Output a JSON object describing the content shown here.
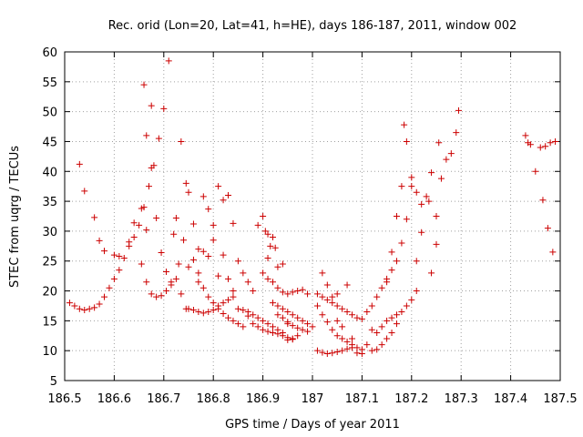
{
  "chart_data": {
    "type": "scatter",
    "title": "Rec. orid (Lon=20, Lat=41, h=HE), days 186-187, 2011, window 002",
    "xlabel": "GPS time / Days of year 2011",
    "ylabel": "STEC from uqrg / TECUs",
    "xlim": [
      186.5,
      187.5
    ],
    "ylim": [
      5,
      60
    ],
    "xticks": [
      "186.5",
      "186.6",
      "186.7",
      "186.8",
      "186.9",
      "187",
      "187.1",
      "187.2",
      "187.3",
      "187.4",
      "187.5"
    ],
    "yticks": [
      "5",
      "10",
      "15",
      "20",
      "25",
      "30",
      "35",
      "40",
      "45",
      "50",
      "55",
      "60"
    ],
    "grid": true,
    "marker": "plus",
    "color": "#cc0000",
    "points": [
      [
        186.51,
        18.0
      ],
      [
        186.52,
        17.5
      ],
      [
        186.53,
        17.0
      ],
      [
        186.54,
        16.8
      ],
      [
        186.55,
        17.0
      ],
      [
        186.56,
        17.2
      ],
      [
        186.57,
        17.8
      ],
      [
        186.58,
        19.0
      ],
      [
        186.59,
        20.5
      ],
      [
        186.6,
        22.0
      ],
      [
        186.61,
        23.5
      ],
      [
        186.62,
        25.5
      ],
      [
        186.63,
        27.5
      ],
      [
        186.64,
        29.0
      ],
      [
        186.65,
        31.0
      ],
      [
        186.66,
        34.0
      ],
      [
        186.67,
        37.5
      ],
      [
        186.68,
        41.0
      ],
      [
        186.69,
        45.5
      ],
      [
        186.7,
        50.5
      ],
      [
        186.71,
        58.5
      ],
      [
        186.53,
        41.2
      ],
      [
        186.54,
        36.7
      ],
      [
        186.56,
        32.3
      ],
      [
        186.57,
        28.4
      ],
      [
        186.58,
        26.7
      ],
      [
        186.6,
        26.0
      ],
      [
        186.61,
        25.8
      ],
      [
        186.63,
        28.2
      ],
      [
        186.64,
        31.4
      ],
      [
        186.655,
        24.5
      ],
      [
        186.665,
        21.5
      ],
      [
        186.675,
        19.5
      ],
      [
        186.685,
        19.0
      ],
      [
        186.695,
        19.2
      ],
      [
        186.705,
        20.0
      ],
      [
        186.715,
        21.0
      ],
      [
        186.725,
        22.0
      ],
      [
        186.735,
        19.5
      ],
      [
        186.745,
        17.0
      ],
      [
        186.655,
        33.8
      ],
      [
        186.665,
        30.2
      ],
      [
        186.675,
        40.6
      ],
      [
        186.685,
        32.2
      ],
      [
        186.695,
        26.4
      ],
      [
        186.705,
        23.2
      ],
      [
        186.715,
        21.5
      ],
      [
        186.725,
        32.2
      ],
      [
        186.735,
        45.0
      ],
      [
        186.745,
        38.0
      ],
      [
        186.66,
        54.5
      ],
      [
        186.665,
        46.0
      ],
      [
        186.675,
        51.0
      ],
      [
        186.72,
        29.5
      ],
      [
        186.73,
        24.5
      ],
      [
        186.74,
        28.5
      ],
      [
        186.75,
        36.5
      ],
      [
        186.76,
        31.2
      ],
      [
        186.77,
        27.0
      ],
      [
        186.78,
        35.8
      ],
      [
        186.79,
        33.7
      ],
      [
        186.8,
        31.0
      ],
      [
        186.81,
        37.5
      ],
      [
        186.82,
        35.2
      ],
      [
        186.83,
        36.0
      ],
      [
        186.84,
        31.3
      ],
      [
        186.85,
        25.0
      ],
      [
        186.86,
        23.0
      ],
      [
        186.87,
        21.5
      ],
      [
        186.88,
        20.0
      ],
      [
        186.75,
        24.0
      ],
      [
        186.76,
        25.2
      ],
      [
        186.77,
        23.0
      ],
      [
        186.78,
        26.6
      ],
      [
        186.79,
        25.8
      ],
      [
        186.8,
        28.5
      ],
      [
        186.81,
        22.5
      ],
      [
        186.82,
        26.0
      ],
      [
        186.83,
        22.0
      ],
      [
        186.84,
        20.0
      ],
      [
        186.75,
        17.0
      ],
      [
        186.76,
        16.8
      ],
      [
        186.77,
        16.5
      ],
      [
        186.78,
        16.3
      ],
      [
        186.79,
        16.5
      ],
      [
        186.8,
        16.8
      ],
      [
        186.81,
        17.5
      ],
      [
        186.82,
        18.0
      ],
      [
        186.83,
        18.5
      ],
      [
        186.84,
        19.0
      ],
      [
        186.77,
        21.5
      ],
      [
        186.78,
        20.5
      ],
      [
        186.79,
        19.0
      ],
      [
        186.8,
        18.0
      ],
      [
        186.81,
        17.0
      ],
      [
        186.82,
        16.2
      ],
      [
        186.83,
        15.5
      ],
      [
        186.84,
        15.0
      ],
      [
        186.85,
        14.5
      ],
      [
        186.86,
        14.0
      ],
      [
        186.85,
        17.0
      ],
      [
        186.86,
        16.8
      ],
      [
        186.87,
        16.5
      ],
      [
        186.88,
        16.0
      ],
      [
        186.89,
        15.5
      ],
      [
        186.9,
        15.0
      ],
      [
        186.91,
        14.5
      ],
      [
        186.92,
        14.0
      ],
      [
        186.93,
        13.5
      ],
      [
        186.94,
        13.0
      ],
      [
        186.87,
        15.8
      ],
      [
        186.88,
        14.5
      ],
      [
        186.89,
        14.0
      ],
      [
        186.9,
        13.5
      ],
      [
        186.91,
        13.2
      ],
      [
        186.92,
        13.0
      ],
      [
        186.93,
        12.8
      ],
      [
        186.94,
        12.5
      ],
      [
        186.95,
        12.2
      ],
      [
        186.96,
        12.0
      ],
      [
        186.89,
        31.0
      ],
      [
        186.9,
        32.5
      ],
      [
        186.905,
        30.0
      ],
      [
        186.91,
        29.5
      ],
      [
        186.915,
        27.5
      ],
      [
        186.92,
        29.0
      ],
      [
        186.925,
        27.2
      ],
      [
        186.93,
        24.0
      ],
      [
        186.94,
        24.5
      ],
      [
        186.91,
        25.5
      ],
      [
        186.9,
        23.0
      ],
      [
        186.91,
        22.0
      ],
      [
        186.92,
        21.5
      ],
      [
        186.93,
        20.5
      ],
      [
        186.94,
        19.8
      ],
      [
        186.95,
        19.5
      ],
      [
        186.96,
        19.8
      ],
      [
        186.97,
        20.0
      ],
      [
        186.98,
        20.2
      ],
      [
        186.99,
        19.5
      ],
      [
        186.92,
        18.0
      ],
      [
        186.93,
        17.5
      ],
      [
        186.94,
        17.0
      ],
      [
        186.95,
        16.5
      ],
      [
        186.96,
        16.0
      ],
      [
        186.97,
        15.5
      ],
      [
        186.98,
        15.0
      ],
      [
        186.99,
        14.5
      ],
      [
        187.0,
        14.0
      ],
      [
        186.95,
        14.5
      ],
      [
        186.93,
        16.0
      ],
      [
        186.94,
        15.5
      ],
      [
        186.95,
        14.8
      ],
      [
        186.96,
        14.2
      ],
      [
        186.97,
        13.8
      ],
      [
        186.98,
        13.5
      ],
      [
        186.99,
        13.2
      ],
      [
        186.95,
        11.8
      ],
      [
        186.96,
        11.9
      ],
      [
        186.97,
        12.5
      ],
      [
        187.01,
        19.5
      ],
      [
        187.02,
        19.0
      ],
      [
        187.03,
        18.5
      ],
      [
        187.04,
        18.0
      ],
      [
        187.05,
        17.5
      ],
      [
        187.06,
        17.0
      ],
      [
        187.07,
        16.5
      ],
      [
        187.08,
        16.0
      ],
      [
        187.09,
        15.5
      ],
      [
        187.1,
        15.3
      ],
      [
        187.01,
        17.5
      ],
      [
        187.02,
        16.0
      ],
      [
        187.03,
        14.8
      ],
      [
        187.04,
        13.5
      ],
      [
        187.05,
        12.5
      ],
      [
        187.06,
        12.0
      ],
      [
        187.07,
        11.5
      ],
      [
        187.08,
        11.0
      ],
      [
        187.09,
        10.5
      ],
      [
        187.1,
        10.2
      ],
      [
        187.01,
        10.0
      ],
      [
        187.02,
        9.7
      ],
      [
        187.03,
        9.5
      ],
      [
        187.04,
        9.6
      ],
      [
        187.05,
        9.8
      ],
      [
        187.06,
        10.0
      ],
      [
        187.07,
        10.3
      ],
      [
        187.08,
        10.5
      ],
      [
        187.09,
        9.6
      ],
      [
        187.1,
        9.5
      ],
      [
        187.02,
        23.0
      ],
      [
        187.03,
        21.0
      ],
      [
        187.04,
        19.0
      ],
      [
        187.05,
        19.5
      ],
      [
        187.07,
        21.0
      ],
      [
        187.08,
        12.0
      ],
      [
        187.06,
        14.0
      ],
      [
        187.05,
        15.0
      ],
      [
        187.11,
        11.0
      ],
      [
        187.12,
        10.0
      ],
      [
        187.11,
        16.5
      ],
      [
        187.12,
        17.5
      ],
      [
        187.13,
        19.0
      ],
      [
        187.14,
        20.5
      ],
      [
        187.15,
        22.0
      ],
      [
        187.16,
        23.5
      ],
      [
        187.17,
        25.0
      ],
      [
        187.18,
        28.0
      ],
      [
        187.19,
        32.0
      ],
      [
        187.2,
        37.5
      ],
      [
        187.12,
        13.5
      ],
      [
        187.13,
        13.0
      ],
      [
        187.14,
        14.0
      ],
      [
        187.15,
        15.0
      ],
      [
        187.16,
        15.5
      ],
      [
        187.17,
        16.0
      ],
      [
        187.18,
        16.5
      ],
      [
        187.19,
        17.5
      ],
      [
        187.2,
        18.5
      ],
      [
        187.21,
        20.0
      ],
      [
        187.13,
        10.2
      ],
      [
        187.14,
        11.0
      ],
      [
        187.15,
        12.0
      ],
      [
        187.16,
        13.0
      ],
      [
        187.17,
        14.5
      ],
      [
        187.15,
        21.5
      ],
      [
        187.16,
        26.5
      ],
      [
        187.17,
        32.5
      ],
      [
        187.18,
        37.5
      ],
      [
        187.185,
        47.8
      ],
      [
        187.19,
        45.0
      ],
      [
        187.2,
        39.0
      ],
      [
        187.21,
        36.5
      ],
      [
        187.22,
        34.5
      ],
      [
        187.23,
        35.8
      ],
      [
        187.24,
        39.8
      ],
      [
        187.25,
        32.5
      ],
      [
        187.255,
        44.8
      ],
      [
        187.26,
        38.8
      ],
      [
        187.27,
        42.0
      ],
      [
        187.28,
        43.0
      ],
      [
        187.29,
        46.5
      ],
      [
        187.295,
        50.2
      ],
      [
        187.24,
        23.0
      ],
      [
        187.25,
        27.8
      ],
      [
        187.22,
        29.8
      ],
      [
        187.21,
        25.0
      ],
      [
        187.235,
        35.0
      ],
      [
        187.43,
        46.0
      ],
      [
        187.435,
        44.8
      ],
      [
        187.44,
        44.5
      ],
      [
        187.45,
        40.0
      ],
      [
        187.46,
        44.0
      ],
      [
        187.47,
        44.2
      ],
      [
        187.48,
        44.8
      ],
      [
        187.49,
        45.0
      ],
      [
        187.465,
        35.2
      ],
      [
        187.475,
        30.5
      ],
      [
        187.485,
        26.5
      ]
    ]
  }
}
